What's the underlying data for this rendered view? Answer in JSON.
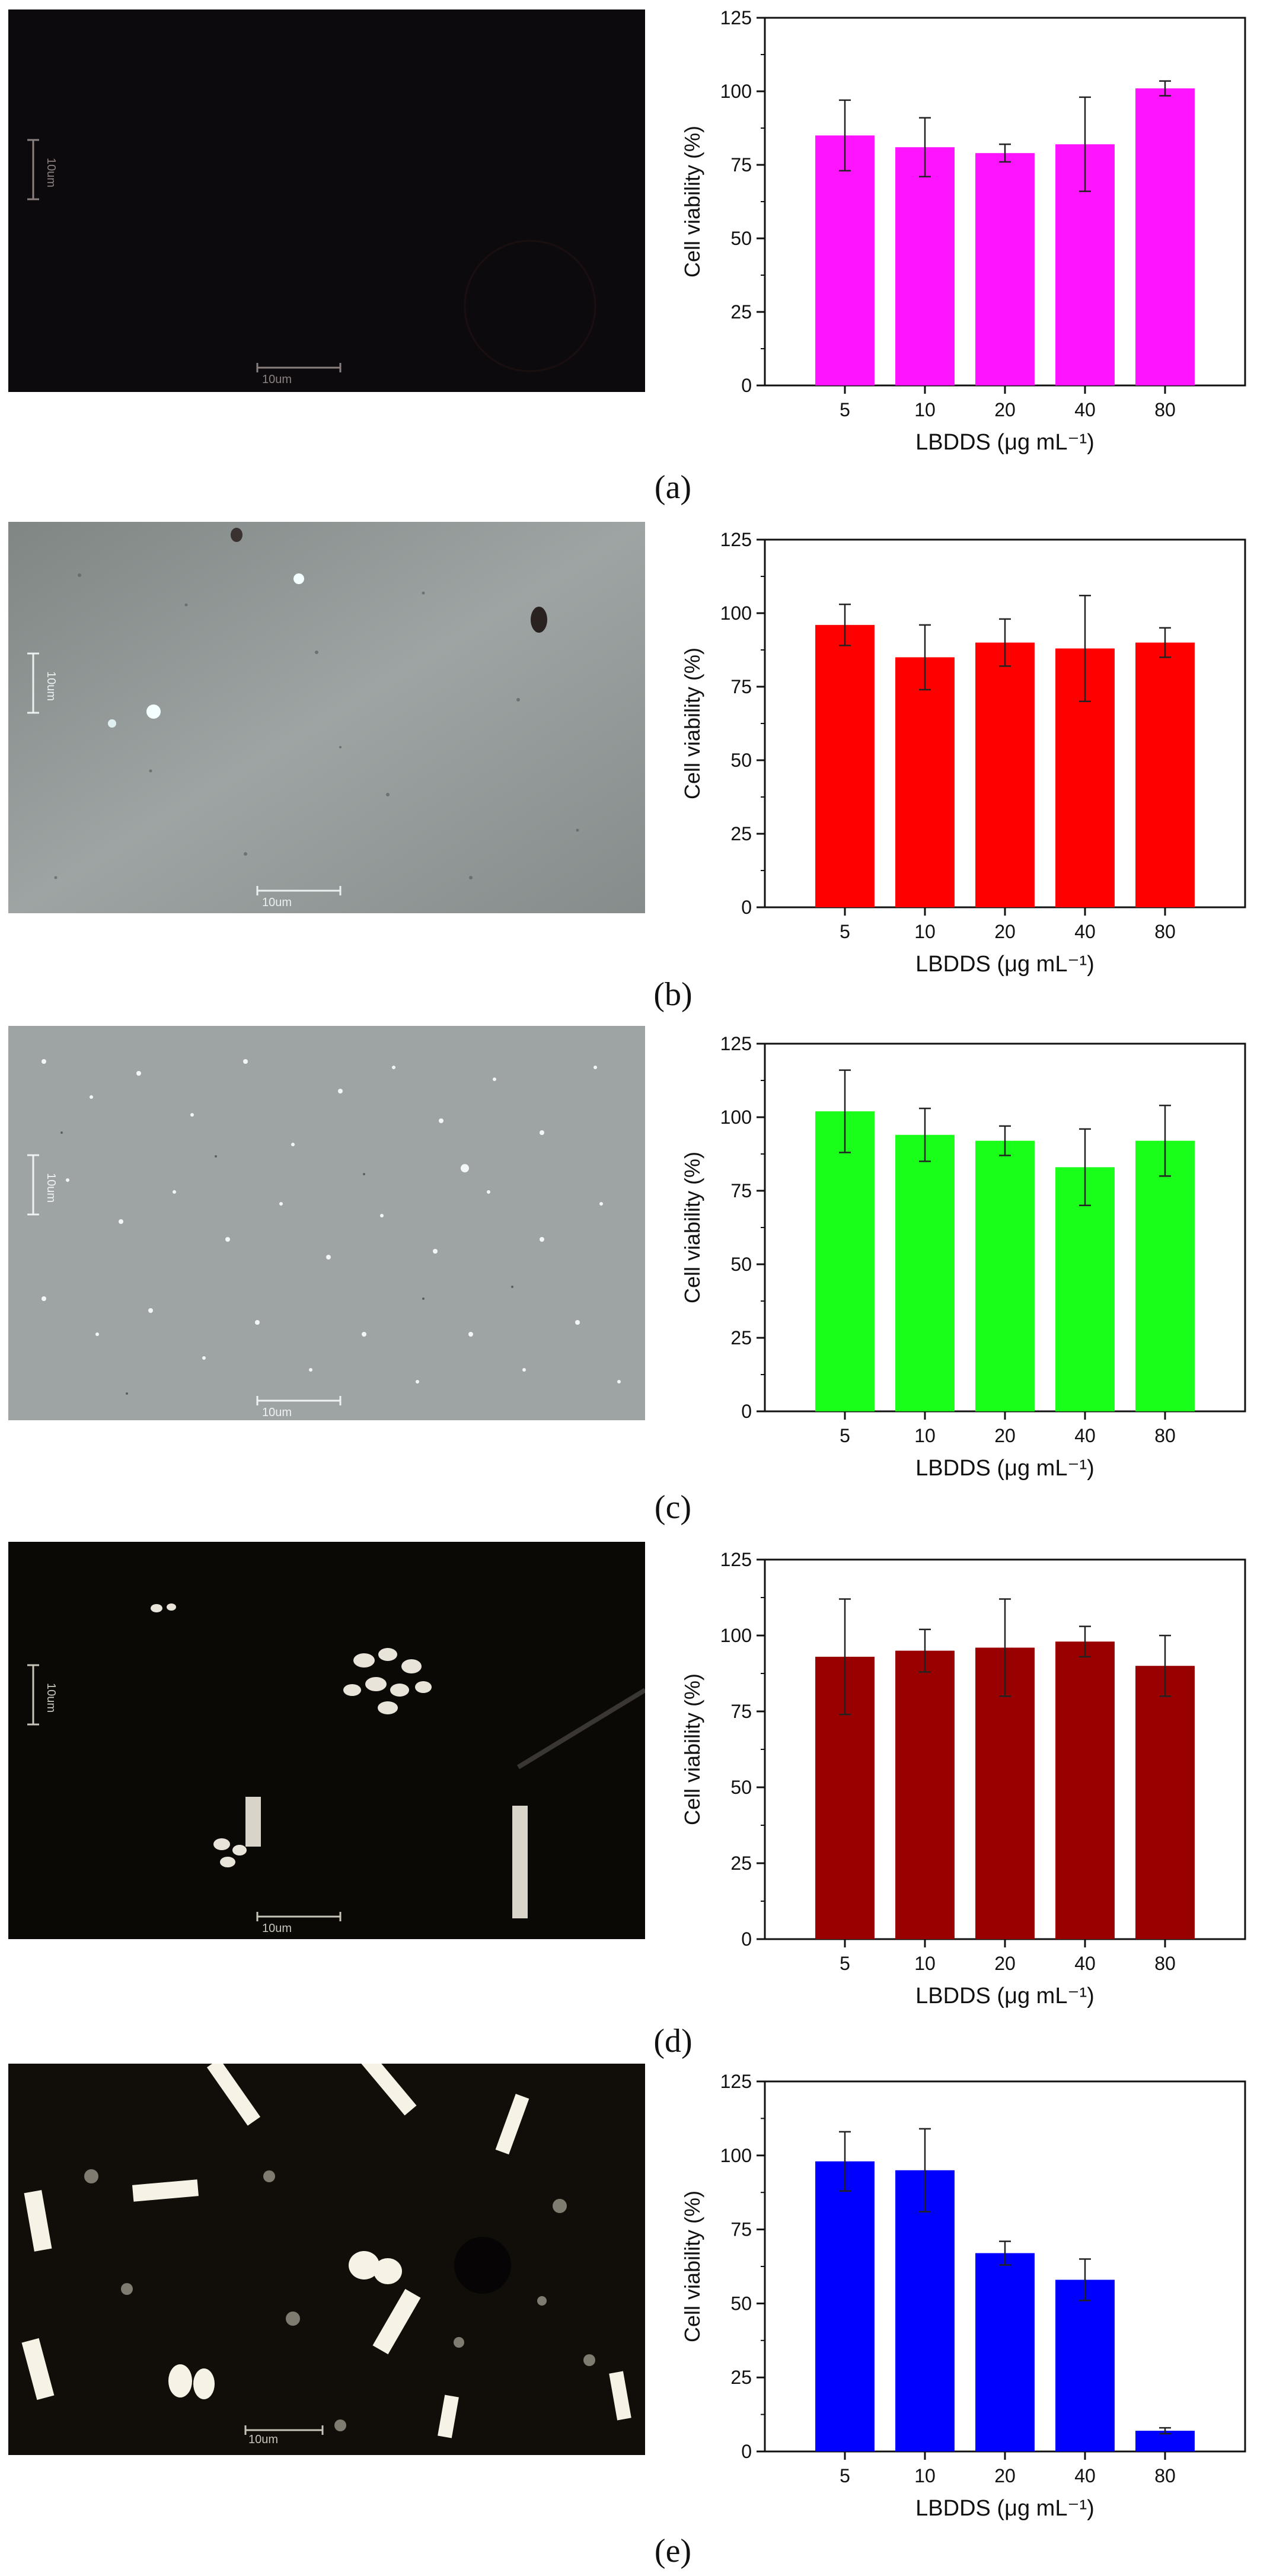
{
  "panels": [
    {
      "label": "(a)",
      "image": {
        "description_icon": "dark-fluorescence-micrograph",
        "tone": "#0c0a0c",
        "scalebar_h": "10um",
        "scalebar_v": "10um"
      },
      "chart_data": {
        "type": "bar",
        "categories": [
          "5",
          "10",
          "20",
          "40",
          "80"
        ],
        "values": [
          85,
          81,
          79,
          82,
          101
        ],
        "errors": [
          12,
          10,
          3,
          16,
          2.5
        ],
        "color": "#ff14ff",
        "xlabel": "LBDDS (μg mL⁻¹)",
        "ylabel": "Cell viability (%)",
        "ylim": [
          0,
          125
        ],
        "yticks": [
          0,
          25,
          50,
          75,
          100,
          125
        ]
      }
    },
    {
      "label": "(b)",
      "image": {
        "description_icon": "grey-brightfield-micrograph",
        "tone": "#8a9090",
        "scalebar_h": "10um",
        "scalebar_v": "10um"
      },
      "chart_data": {
        "type": "bar",
        "categories": [
          "5",
          "10",
          "20",
          "40",
          "80"
        ],
        "values": [
          96,
          85,
          90,
          88,
          90
        ],
        "errors": [
          7,
          11,
          8,
          18,
          5
        ],
        "color": "#ff0000",
        "xlabel": "LBDDS (μg mL⁻¹)",
        "ylabel": "Cell viability (%)",
        "ylim": [
          0,
          125
        ],
        "yticks": [
          0,
          25,
          50,
          75,
          100,
          125
        ]
      }
    },
    {
      "label": "(c)",
      "image": {
        "description_icon": "grey-brightfield-micrograph-particles",
        "tone": "#9ea2a3",
        "scalebar_h": "10um",
        "scalebar_v": "10um"
      },
      "chart_data": {
        "type": "bar",
        "categories": [
          "5",
          "10",
          "20",
          "40",
          "80"
        ],
        "values": [
          102,
          94,
          92,
          83,
          92
        ],
        "errors": [
          14,
          9,
          5,
          13,
          12
        ],
        "color": "#19ff19",
        "xlabel": "LBDDS (μg mL⁻¹)",
        "ylabel": "Cell viability (%)",
        "ylim": [
          0,
          125
        ],
        "yticks": [
          0,
          25,
          50,
          75,
          100,
          125
        ]
      }
    },
    {
      "label": "(d)",
      "image": {
        "description_icon": "dark-polarized-micrograph-crystals",
        "tone": "#0a0806",
        "scalebar_h": "10um",
        "scalebar_v": "10um"
      },
      "chart_data": {
        "type": "bar",
        "categories": [
          "5",
          "10",
          "20",
          "40",
          "80"
        ],
        "values": [
          93,
          95,
          96,
          98,
          90
        ],
        "errors": [
          19,
          7,
          16,
          5,
          10
        ],
        "color": "#990000",
        "xlabel": "LBDDS (μg mL⁻¹)",
        "ylabel": "Cell viability (%)",
        "ylim": [
          0,
          125
        ],
        "yticks": [
          0,
          25,
          50,
          75,
          100,
          125
        ]
      }
    },
    {
      "label": "(e)",
      "image": {
        "description_icon": "dark-polarized-micrograph-many-crystals",
        "tone": "#100c08",
        "scalebar_h": "10um",
        "scalebar_v": "10um"
      },
      "chart_data": {
        "type": "bar",
        "categories": [
          "5",
          "10",
          "20",
          "40",
          "80"
        ],
        "values": [
          98,
          95,
          67,
          58,
          7
        ],
        "errors": [
          10,
          14,
          4,
          7,
          1
        ],
        "color": "#0000ff",
        "xlabel": "LBDDS (μg mL⁻¹)",
        "ylabel": "Cell viability (%)",
        "ylim": [
          0,
          125
        ],
        "yticks": [
          0,
          25,
          50,
          75,
          100,
          125
        ]
      }
    }
  ]
}
